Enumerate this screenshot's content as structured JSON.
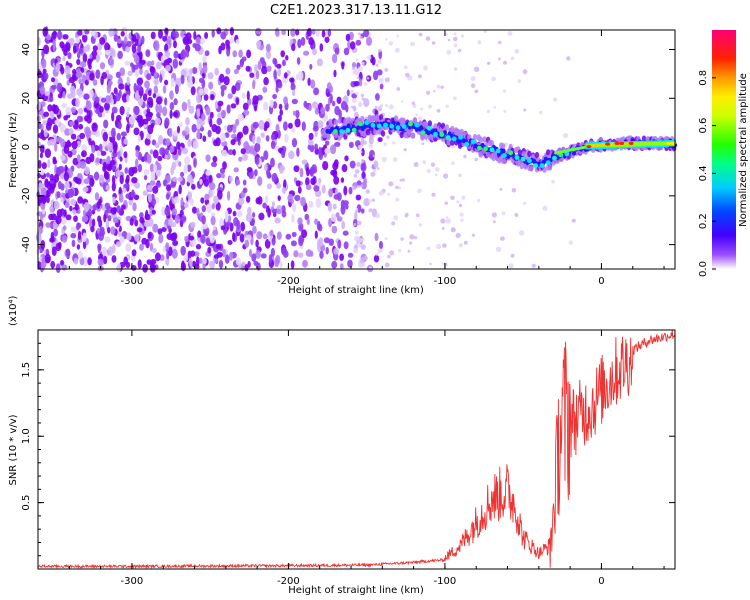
{
  "title": "C2E1.2023.317.13.11.G12",
  "chart_data": [
    {
      "type": "heatmap",
      "xlabel": "Height of straight line (km)",
      "ylabel": "Frequency (Hz)",
      "xlim": [
        -360,
        47
      ],
      "ylim": [
        -50,
        48
      ],
      "xticks": [
        -300,
        -200,
        -100,
        0
      ],
      "yticks": [
        -40,
        -20,
        0,
        20,
        40
      ],
      "colorbar": {
        "label": "Normalized spectral amplitude",
        "range": [
          0,
          1
        ],
        "ticks": [
          "0.0",
          "0.2",
          "0.4",
          "0.6",
          "0.8"
        ],
        "tick_values": [
          0.0,
          0.2,
          0.4,
          0.6,
          0.8
        ]
      },
      "ridge": {
        "x": [
          -175,
          -160,
          -140,
          -120,
          -100,
          -80,
          -60,
          -40,
          -25,
          -10,
          0,
          10,
          47
        ],
        "y": [
          7,
          8,
          9,
          8,
          5,
          1,
          -3,
          -7,
          -3,
          0,
          1,
          1.5,
          1.5
        ]
      },
      "colors": [
        "#ffffff",
        "#7700ee",
        "#0000ff",
        "#00ffff",
        "#00ff00",
        "#ffff00",
        "#ff8800",
        "#ff0000",
        "#ff0077"
      ]
    },
    {
      "type": "line",
      "xlabel": "Height of straight line (km)",
      "ylabel": "SNR (10 * v/v)",
      "y_multiplier": "(x10⁴)",
      "xlim": [
        -360,
        47
      ],
      "ylim": [
        0,
        1.8
      ],
      "xticks": [
        -300,
        -200,
        -100,
        0
      ],
      "yticks": [
        0.5,
        1.0,
        1.5
      ],
      "ytick_labels": [
        "0.5",
        "1.0",
        "1.5"
      ],
      "series": [
        {
          "color": "#ee3333",
          "x": [
            -360,
            -300,
            -200,
            -150,
            -120,
            -100,
            -90,
            -80,
            -70,
            -60,
            -55,
            -50,
            -40,
            -33,
            -30,
            -27,
            -25,
            -20,
            -15,
            -10,
            -5,
            0,
            10,
            20,
            30,
            40,
            47
          ],
          "y": [
            0.02,
            0.02,
            0.025,
            0.03,
            0.05,
            0.07,
            0.15,
            0.3,
            0.45,
            0.5,
            0.4,
            0.2,
            0.1,
            0.15,
            0.5,
            1.0,
            1.1,
            1.15,
            1.2,
            1.25,
            1.3,
            1.4,
            1.55,
            1.65,
            1.72,
            1.75,
            1.77
          ]
        }
      ]
    }
  ]
}
